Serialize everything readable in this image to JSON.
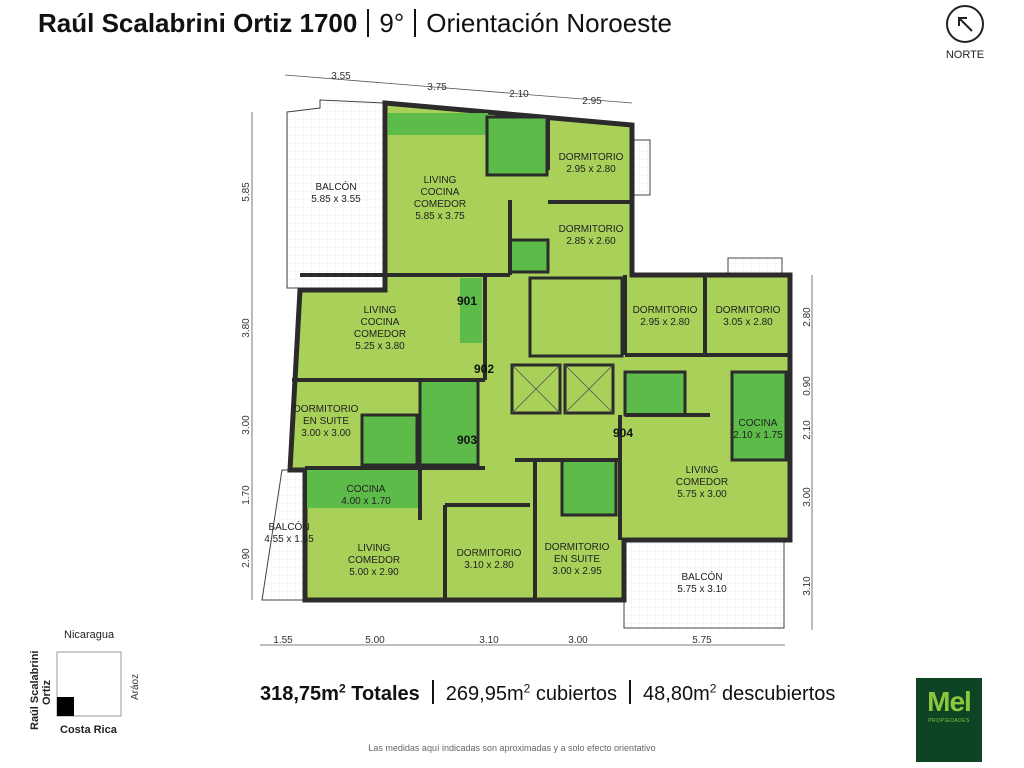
{
  "header": {
    "address": "Raúl Scalabrini Ortiz 1700",
    "floor": "9°",
    "orientation": "Orientación Noroeste",
    "north_label": "NORTE",
    "north_icon": "arrow-up-left-icon"
  },
  "plan": {
    "units": [
      "901",
      "902",
      "903",
      "904"
    ],
    "rooms": {
      "balcon_901": {
        "name": "BALCÓN",
        "size": "5.85 x 3.55"
      },
      "living_901": {
        "name1": "LIVING",
        "name2": "COCINA",
        "name3": "COMEDOR",
        "size": "5.85 x 3.75"
      },
      "dorm1_901": {
        "name": "DORMITORIO",
        "size": "2.95 x 2.80"
      },
      "dorm2_901": {
        "name": "DORMITORIO",
        "size": "2.85 x 2.60"
      },
      "living_902": {
        "name1": "LIVING",
        "name2": "COCINA",
        "name3": "COMEDOR",
        "size": "5.25 x 3.80"
      },
      "suite_902": {
        "name1": "DORMITORIO",
        "name2": "EN SUITE",
        "size": "3.00 x 3.00"
      },
      "cocina_903": {
        "name": "COCINA",
        "size": "4.00 x 1.70"
      },
      "balcon_903": {
        "name": "BALCÓN",
        "size": "4.55 x 1.55"
      },
      "living_903": {
        "name1": "LIVING",
        "name2": "COMEDOR",
        "size": "5.00 x 2.90"
      },
      "dorm_903": {
        "name": "DORMITORIO",
        "size": "3.10 x 2.80"
      },
      "suite_903": {
        "name1": "DORMITORIO",
        "name2": "EN SUITE",
        "size": "3.00 x 2.95"
      },
      "dorm1_904": {
        "name": "DORMITORIO",
        "size": "2.95 x 2.80"
      },
      "dorm2_904": {
        "name": "DORMITORIO",
        "size": "3.05 x 2.80"
      },
      "cocina_904": {
        "name": "COCINA",
        "size": "2.10 x 1.75"
      },
      "living_904": {
        "name1": "LIVING",
        "name2": "COMEDOR",
        "size": "5.75 x 3.00"
      },
      "balcon_904": {
        "name": "BALCÓN",
        "size": "5.75 x 3.10"
      }
    },
    "dims_top": [
      "3.55",
      "3.75",
      "2.10",
      "2.95"
    ],
    "dims_left": [
      "5.85",
      "3.80",
      "3.00",
      "1.70",
      "2.90"
    ],
    "dims_right": [
      "2.80",
      "0.90",
      "2.10",
      "3.00",
      "3.10"
    ],
    "dims_bottom": [
      "1.55",
      "5.00",
      "3.10",
      "3.00",
      "5.75"
    ],
    "colors": {
      "room": "#a9d15a",
      "wet": "#5dbb4a",
      "wall": "#2b2b2b",
      "balcony": "#ffffff"
    }
  },
  "location": {
    "north_street": "Nicaragua",
    "south_street": "Costa Rica",
    "west_street_1": "Raúl Scalabrini",
    "west_street_2": "Ortiz",
    "east_street": "Aráoz"
  },
  "totals": {
    "total_value": "318,75m",
    "total_label": "Totales",
    "covered_value": "269,95m",
    "covered_label": "cubiertos",
    "uncovered_value": "48,80m",
    "uncovered_label": "descubiertos",
    "sup": "2"
  },
  "disclaimer": "Las medidas aquí indicadas son aproximadas y a solo efecto orientativo",
  "logo": {
    "name": "Mel",
    "sub": "PROPIEDADES"
  }
}
